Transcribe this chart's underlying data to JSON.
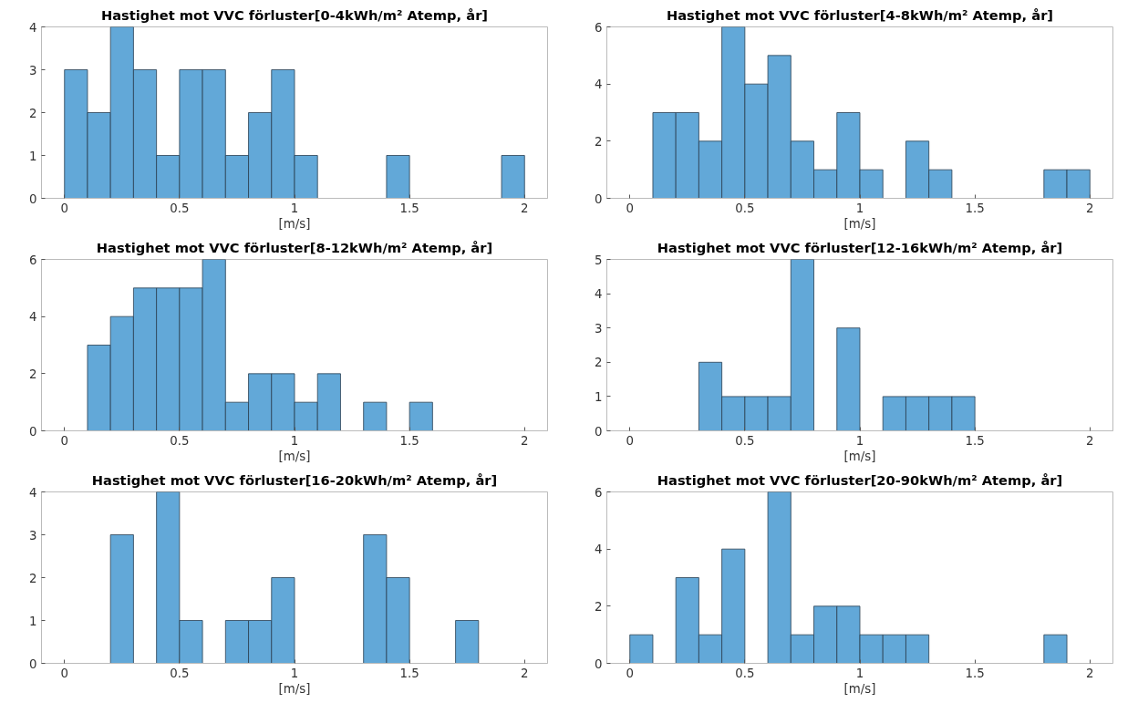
{
  "chart_data": [
    {
      "type": "histogram",
      "title": "Hastighet mot VVC förluster[0-4kWh/m² Atemp, år]",
      "xlabel": "[m/s]",
      "color": "#62a8d8",
      "bins": [
        0,
        0.1,
        0.2,
        0.3,
        0.4,
        0.5,
        0.6,
        0.7,
        0.8,
        0.9,
        1,
        1.1,
        1.2,
        1.3,
        1.4,
        1.5,
        1.6,
        1.7,
        1.8,
        1.9,
        2
      ],
      "values": [
        3,
        2,
        4,
        3,
        1,
        3,
        3,
        1,
        2,
        3,
        1,
        0,
        0,
        0,
        1,
        0,
        0,
        0,
        0,
        1
      ],
      "xlim": [
        -0.1,
        2.1
      ],
      "xticks": [
        0,
        0.5,
        1,
        1.5,
        2
      ],
      "ylim": [
        0,
        4
      ],
      "yticks": [
        0,
        1,
        2,
        3,
        4
      ],
      "grid": false
    },
    {
      "type": "histogram",
      "title": "Hastighet mot VVC förluster[4-8kWh/m² Atemp, år]",
      "xlabel": "[m/s]",
      "color": "#62a8d8",
      "bins": [
        0,
        0.1,
        0.2,
        0.3,
        0.4,
        0.5,
        0.6,
        0.7,
        0.8,
        0.9,
        1,
        1.1,
        1.2,
        1.3,
        1.4,
        1.5,
        1.6,
        1.7,
        1.8,
        1.9,
        2
      ],
      "values": [
        0,
        3,
        3,
        2,
        6,
        4,
        5,
        2,
        1,
        3,
        1,
        0,
        2,
        1,
        0,
        0,
        0,
        0,
        1,
        1
      ],
      "xlim": [
        -0.1,
        2.1
      ],
      "xticks": [
        0,
        0.5,
        1,
        1.5,
        2
      ],
      "ylim": [
        0,
        6
      ],
      "yticks": [
        0,
        2,
        4,
        6
      ],
      "grid": false
    },
    {
      "type": "histogram",
      "title": "Hastighet mot VVC förluster[8-12kWh/m² Atemp, år]",
      "xlabel": "[m/s]",
      "color": "#62a8d8",
      "bins": [
        0,
        0.1,
        0.2,
        0.3,
        0.4,
        0.5,
        0.6,
        0.7,
        0.8,
        0.9,
        1,
        1.1,
        1.2,
        1.3,
        1.4,
        1.5,
        1.6,
        1.7,
        1.8,
        1.9,
        2
      ],
      "values": [
        0,
        3,
        4,
        5,
        5,
        5,
        6,
        1,
        2,
        2,
        1,
        2,
        0,
        1,
        0,
        1,
        0,
        0,
        0,
        0
      ],
      "xlim": [
        -0.1,
        2.1
      ],
      "xticks": [
        0,
        0.5,
        1,
        1.5,
        2
      ],
      "ylim": [
        0,
        6
      ],
      "yticks": [
        0,
        2,
        4,
        6
      ],
      "grid": false
    },
    {
      "type": "histogram",
      "title": "Hastighet mot VVC förluster[12-16kWh/m² Atemp, år]",
      "xlabel": "[m/s]",
      "color": "#62a8d8",
      "bins": [
        0,
        0.1,
        0.2,
        0.3,
        0.4,
        0.5,
        0.6,
        0.7,
        0.8,
        0.9,
        1,
        1.1,
        1.2,
        1.3,
        1.4,
        1.5,
        1.6,
        1.7,
        1.8,
        1.9,
        2
      ],
      "values": [
        0,
        0,
        0,
        2,
        1,
        1,
        1,
        5,
        0,
        3,
        0,
        1,
        1,
        1,
        1,
        0,
        0,
        0,
        0,
        0
      ],
      "xlim": [
        -0.1,
        2.1
      ],
      "xticks": [
        0,
        0.5,
        1,
        1.5,
        2
      ],
      "ylim": [
        0,
        5
      ],
      "yticks": [
        0,
        1,
        2,
        3,
        4,
        5
      ],
      "grid": false
    },
    {
      "type": "histogram",
      "title": "Hastighet mot VVC förluster[16-20kWh/m² Atemp, år]",
      "xlabel": "[m/s]",
      "color": "#62a8d8",
      "bins": [
        0,
        0.1,
        0.2,
        0.3,
        0.4,
        0.5,
        0.6,
        0.7,
        0.8,
        0.9,
        1,
        1.1,
        1.2,
        1.3,
        1.4,
        1.5,
        1.6,
        1.7,
        1.8,
        1.9,
        2
      ],
      "values": [
        0,
        0,
        3,
        0,
        4,
        1,
        0,
        1,
        1,
        2,
        0,
        0,
        0,
        3,
        2,
        0,
        0,
        1,
        0,
        0
      ],
      "xlim": [
        -0.1,
        2.1
      ],
      "xticks": [
        0,
        0.5,
        1,
        1.5,
        2
      ],
      "ylim": [
        0,
        4
      ],
      "yticks": [
        0,
        1,
        2,
        3,
        4
      ],
      "grid": false
    },
    {
      "type": "histogram",
      "title": "Hastighet mot VVC förluster[20-90kWh/m² Atemp, år]",
      "xlabel": "[m/s]",
      "color": "#62a8d8",
      "bins": [
        0,
        0.1,
        0.2,
        0.3,
        0.4,
        0.5,
        0.6,
        0.7,
        0.8,
        0.9,
        1,
        1.1,
        1.2,
        1.3,
        1.4,
        1.5,
        1.6,
        1.7,
        1.8,
        1.9,
        2
      ],
      "values": [
        1,
        0,
        3,
        1,
        4,
        0,
        6,
        1,
        2,
        2,
        1,
        1,
        1,
        0,
        0,
        0,
        0,
        0,
        1,
        0
      ],
      "xlim": [
        -0.1,
        2.1
      ],
      "xticks": [
        0,
        0.5,
        1,
        1.5,
        2
      ],
      "ylim": [
        0,
        6
      ],
      "yticks": [
        0,
        2,
        4,
        6
      ],
      "grid": false
    }
  ]
}
